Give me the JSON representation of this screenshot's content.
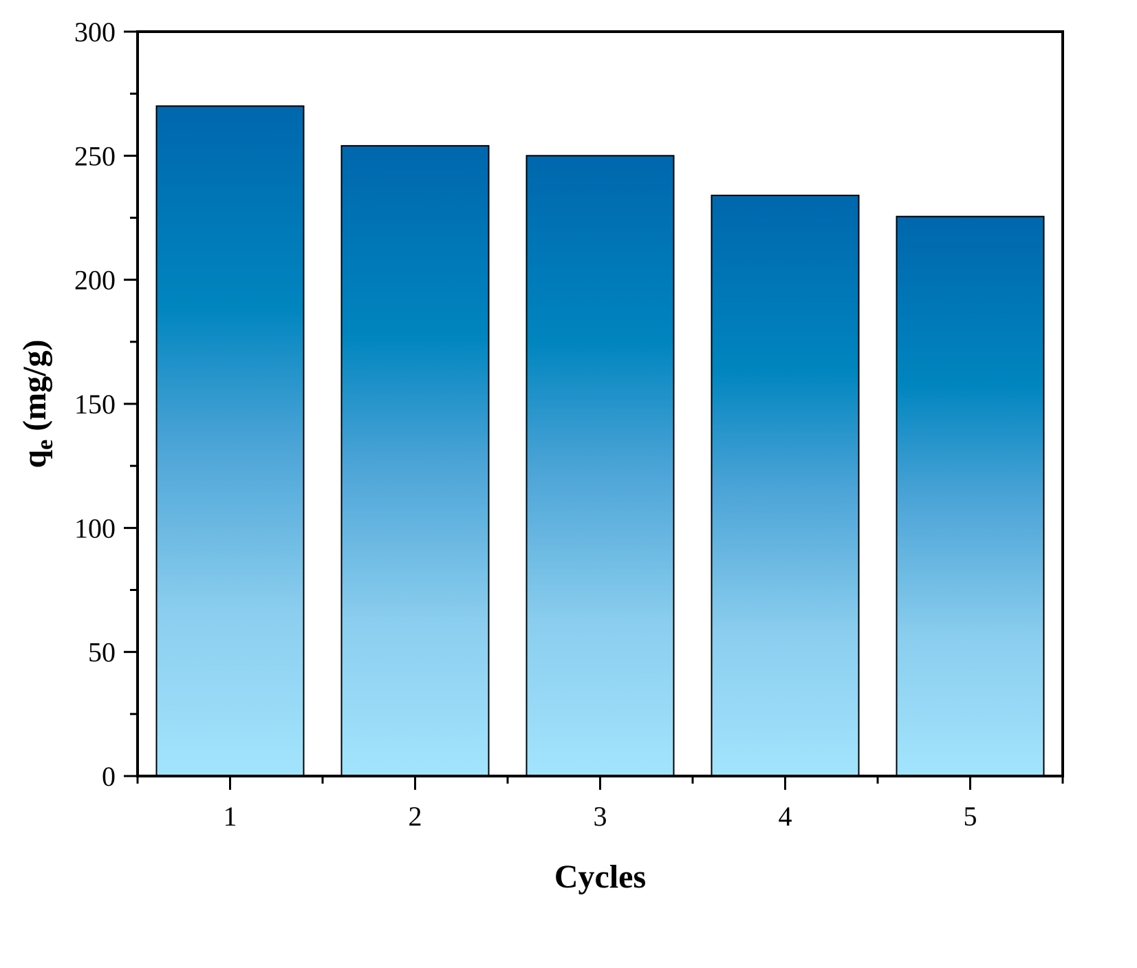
{
  "chart_data": {
    "type": "bar",
    "title": "",
    "xlabel": "Cycles",
    "ylabel_main": "q",
    "ylabel_sub": "e",
    "ylabel_units": " (mg/g)",
    "categories": [
      "1",
      "2",
      "3",
      "4",
      "5"
    ],
    "values": [
      270,
      254,
      250,
      234,
      225.5
    ],
    "ylim": [
      0,
      300
    ],
    "yticks": [
      "0",
      "50",
      "100",
      "150",
      "200",
      "250",
      "300"
    ],
    "ytick_values": [
      0,
      50,
      100,
      150,
      200,
      250,
      300
    ],
    "grid": false,
    "legend": "none",
    "colors": {
      "bar_top": "#0067ad",
      "bar_mid": "#0085bf",
      "bar_bottom": "#a3e4fd",
      "bar_edge": "#000000",
      "axis": "#000000"
    }
  }
}
